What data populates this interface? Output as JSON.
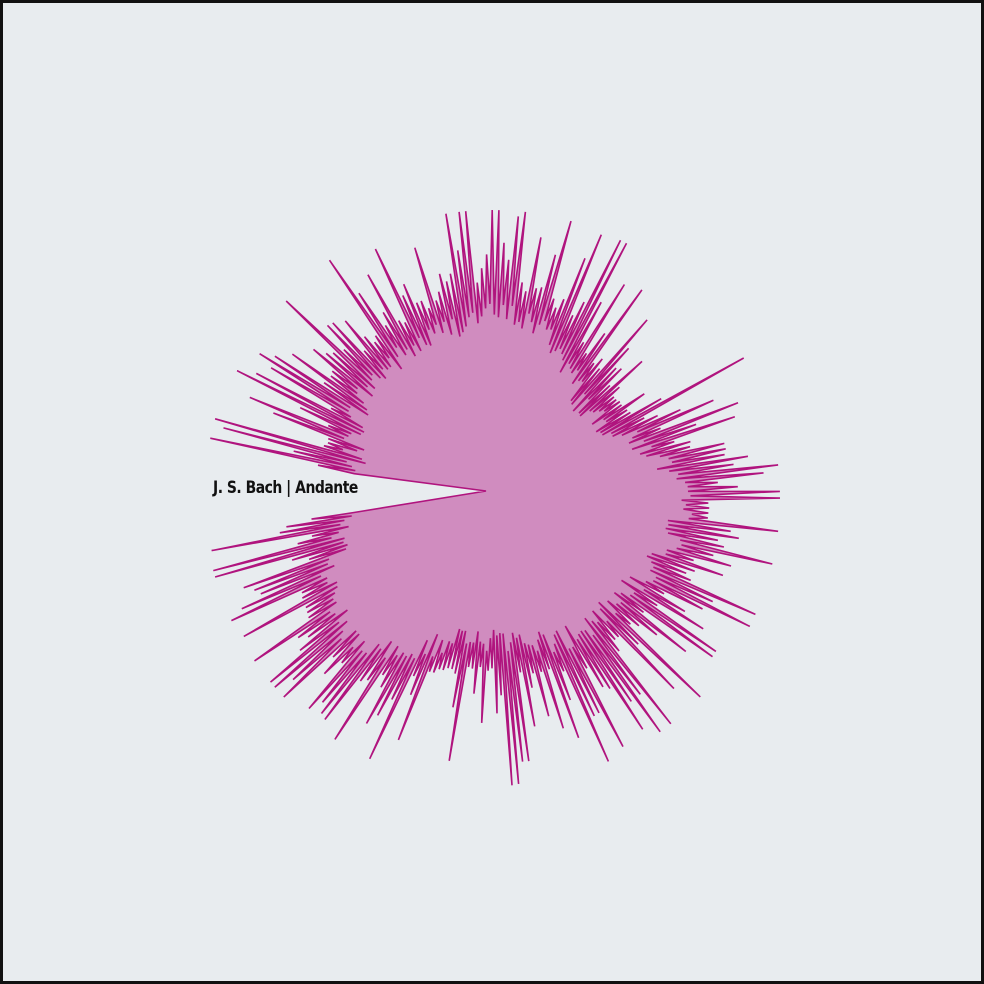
{
  "title": "J. S. Bach | Andante",
  "colors": {
    "background": "#e8ecef",
    "border": "#111111",
    "fill": "#d08cbf",
    "stroke": "#b0147e",
    "text": "#111111"
  },
  "waveform": {
    "kind": "radial amplitude spikes",
    "gap_direction": "left"
  }
}
